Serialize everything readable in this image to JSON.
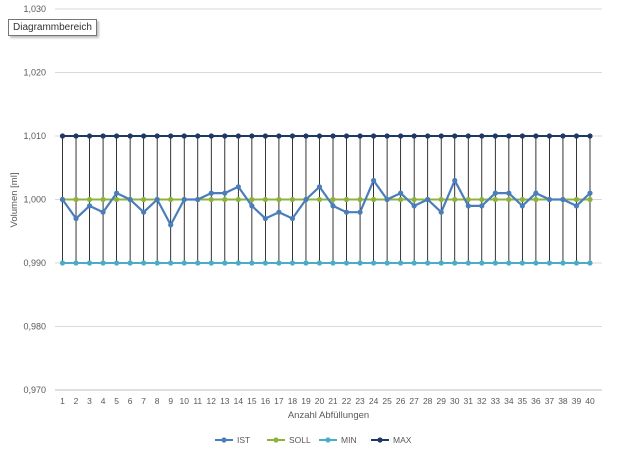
{
  "tooltip": "Diagrammbereich",
  "chart_data": {
    "type": "line",
    "xlabel": "Anzahl Abfüllungen",
    "ylabel": "Volumen [ml]",
    "ylim": [
      0.97,
      1.03
    ],
    "yticks": [
      "0,970",
      "0,980",
      "0,990",
      "1,000",
      "1,010",
      "1,020",
      "1,030"
    ],
    "categories": [
      "1",
      "2",
      "3",
      "4",
      "5",
      "6",
      "7",
      "8",
      "9",
      "10",
      "11",
      "12",
      "13",
      "14",
      "15",
      "16",
      "17",
      "18",
      "19",
      "20",
      "21",
      "22",
      "23",
      "24",
      "25",
      "26",
      "27",
      "28",
      "29",
      "30",
      "31",
      "32",
      "33",
      "34",
      "35",
      "36",
      "37",
      "38",
      "39",
      "40"
    ],
    "grid": "horizontal",
    "legend": "bottom",
    "series": [
      {
        "name": "IST",
        "color": "#4a7ebb",
        "values": [
          1.0,
          0.997,
          0.999,
          0.998,
          1.001,
          1.0,
          0.998,
          1.0,
          0.996,
          1.0,
          1.0,
          1.001,
          1.001,
          1.002,
          0.999,
          0.997,
          0.998,
          0.997,
          1.0,
          1.002,
          0.999,
          0.998,
          0.998,
          1.003,
          1.0,
          1.001,
          0.999,
          1.0,
          0.998,
          1.003,
          0.999,
          0.999,
          1.001,
          1.001,
          0.999,
          1.001,
          1.0,
          1.0,
          0.999,
          1.001
        ]
      },
      {
        "name": "SOLL",
        "color": "#8db33e",
        "values": [
          1.0,
          1.0,
          1.0,
          1.0,
          1.0,
          1.0,
          1.0,
          1.0,
          1.0,
          1.0,
          1.0,
          1.0,
          1.0,
          1.0,
          1.0,
          1.0,
          1.0,
          1.0,
          1.0,
          1.0,
          1.0,
          1.0,
          1.0,
          1.0,
          1.0,
          1.0,
          1.0,
          1.0,
          1.0,
          1.0,
          1.0,
          1.0,
          1.0,
          1.0,
          1.0,
          1.0,
          1.0,
          1.0,
          1.0,
          1.0
        ]
      },
      {
        "name": "MIN",
        "color": "#4bacc6",
        "values": [
          0.99,
          0.99,
          0.99,
          0.99,
          0.99,
          0.99,
          0.99,
          0.99,
          0.99,
          0.99,
          0.99,
          0.99,
          0.99,
          0.99,
          0.99,
          0.99,
          0.99,
          0.99,
          0.99,
          0.99,
          0.99,
          0.99,
          0.99,
          0.99,
          0.99,
          0.99,
          0.99,
          0.99,
          0.99,
          0.99,
          0.99,
          0.99,
          0.99,
          0.99,
          0.99,
          0.99,
          0.99,
          0.99,
          0.99,
          0.99
        ]
      },
      {
        "name": "MAX",
        "color": "#1f3864",
        "values": [
          1.01,
          1.01,
          1.01,
          1.01,
          1.01,
          1.01,
          1.01,
          1.01,
          1.01,
          1.01,
          1.01,
          1.01,
          1.01,
          1.01,
          1.01,
          1.01,
          1.01,
          1.01,
          1.01,
          1.01,
          1.01,
          1.01,
          1.01,
          1.01,
          1.01,
          1.01,
          1.01,
          1.01,
          1.01,
          1.01,
          1.01,
          1.01,
          1.01,
          1.01,
          1.01,
          1.01,
          1.01,
          1.01,
          1.01,
          1.01
        ]
      }
    ],
    "drop_lines": true
  }
}
